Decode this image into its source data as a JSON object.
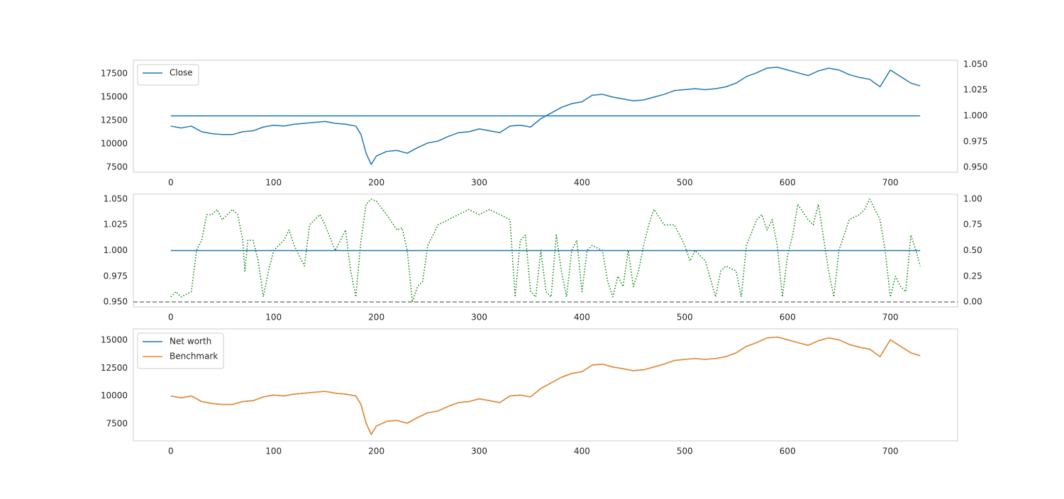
{
  "chart_data": [
    {
      "type": "line",
      "legend": "upper left",
      "grid": false,
      "xlim": [
        -36.45,
        765.45
      ],
      "xticks": [
        0,
        100,
        200,
        300,
        400,
        500,
        600,
        700
      ],
      "ylim": [
        6970,
        18940
      ],
      "yticks": [
        7500,
        10000,
        12500,
        15000,
        17500
      ],
      "y2lim": [
        0.9452,
        1.0541
      ],
      "y2ticks": [
        {
          "value": 0.95,
          "label": "0.950"
        },
        {
          "value": 0.975,
          "label": "0.975"
        },
        {
          "value": 1.0,
          "label": "1.000"
        },
        {
          "value": 1.025,
          "label": "1.025"
        },
        {
          "value": 1.05,
          "label": "1.050"
        }
      ],
      "x": [
        0,
        10,
        20,
        30,
        40,
        50,
        60,
        70,
        80,
        90,
        100,
        110,
        120,
        130,
        140,
        150,
        160,
        170,
        180,
        185,
        190,
        195,
        200,
        210,
        220,
        230,
        240,
        250,
        260,
        270,
        280,
        290,
        300,
        310,
        320,
        330,
        340,
        350,
        360,
        370,
        380,
        390,
        400,
        410,
        420,
        430,
        440,
        450,
        460,
        470,
        480,
        490,
        500,
        510,
        520,
        530,
        540,
        550,
        560,
        570,
        580,
        590,
        600,
        610,
        620,
        630,
        640,
        650,
        660,
        670,
        680,
        690,
        700,
        710,
        720,
        729
      ],
      "series": [
        {
          "name": "Close",
          "color": "#1f77b4",
          "values": [
            11900,
            11700,
            11900,
            11300,
            11100,
            11000,
            11000,
            11300,
            11400,
            11800,
            12000,
            11900,
            12100,
            12200,
            12300,
            12400,
            12200,
            12100,
            11900,
            11000,
            9000,
            7800,
            8700,
            9200,
            9300,
            9000,
            9600,
            10100,
            10300,
            10800,
            11200,
            11300,
            11600,
            11400,
            11200,
            11900,
            12000,
            11800,
            12700,
            13300,
            13900,
            14300,
            14500,
            15200,
            15300,
            15000,
            14800,
            14600,
            14700,
            15000,
            15300,
            15700,
            15800,
            15900,
            15800,
            15900,
            16100,
            16500,
            17200,
            17600,
            18100,
            18200,
            17900,
            17600,
            17300,
            17800,
            18100,
            17900,
            17400,
            17100,
            16900,
            16100,
            17900,
            17200,
            16500,
            16200
          ]
        }
      ],
      "hlines": [
        {
          "y": 1.0,
          "axis": "y2",
          "x": [
            0,
            729
          ],
          "color": "#1f77b4"
        }
      ]
    },
    {
      "type": "line",
      "grid": false,
      "xlim": [
        -36.45,
        765.45
      ],
      "xticks": [
        0,
        100,
        200,
        300,
        400,
        500,
        600,
        700
      ],
      "ylim": [
        0.9452,
        1.0548
      ],
      "yticks": [
        {
          "value": 0.95,
          "label": "0.950"
        },
        {
          "value": 0.975,
          "label": "0.975"
        },
        {
          "value": 1.0,
          "label": "1.000"
        },
        {
          "value": 1.025,
          "label": "1.025"
        },
        {
          "value": 1.05,
          "label": "1.050"
        }
      ],
      "y2lim": [
        -0.048,
        1.048
      ],
      "y2ticks": [
        {
          "value": 0,
          "label": "0.00"
        },
        {
          "value": 0.25,
          "label": "0.25"
        },
        {
          "value": 0.5,
          "label": "0.50"
        },
        {
          "value": 0.75,
          "label": "0.75"
        },
        {
          "value": 1,
          "label": "1.00"
        }
      ],
      "x": [
        0,
        5,
        10,
        20,
        25,
        30,
        35,
        40,
        45,
        50,
        55,
        60,
        65,
        70,
        72,
        75,
        80,
        85,
        90,
        95,
        100,
        110,
        115,
        120,
        130,
        135,
        140,
        145,
        150,
        160,
        170,
        175,
        180,
        185,
        190,
        195,
        200,
        210,
        220,
        225,
        230,
        235,
        240,
        245,
        250,
        260,
        270,
        280,
        290,
        300,
        310,
        320,
        330,
        335,
        340,
        345,
        350,
        355,
        360,
        365,
        370,
        375,
        380,
        385,
        390,
        395,
        400,
        405,
        410,
        420,
        425,
        430,
        435,
        440,
        445,
        450,
        455,
        460,
        465,
        470,
        480,
        490,
        500,
        505,
        510,
        520,
        530,
        535,
        540,
        550,
        555,
        560,
        570,
        575,
        580,
        585,
        590,
        595,
        600,
        605,
        610,
        620,
        625,
        630,
        640,
        645,
        650,
        660,
        670,
        675,
        680,
        690,
        695,
        700,
        705,
        710,
        715,
        720,
        725,
        729
      ],
      "series": [
        {
          "color": "#008000",
          "axis": "y2",
          "style": "dotted",
          "values": [
            0.05,
            0.1,
            0.05,
            0.1,
            0.5,
            0.6,
            0.85,
            0.85,
            0.9,
            0.8,
            0.85,
            0.9,
            0.85,
            0.6,
            0.3,
            0.6,
            0.6,
            0.4,
            0.05,
            0.3,
            0.5,
            0.6,
            0.7,
            0.55,
            0.35,
            0.75,
            0.8,
            0.85,
            0.75,
            0.5,
            0.7,
            0.3,
            0.05,
            0.6,
            0.95,
            1.0,
            0.98,
            0.85,
            0.7,
            0.72,
            0.5,
            0.0,
            0.15,
            0.2,
            0.55,
            0.75,
            0.8,
            0.85,
            0.9,
            0.85,
            0.9,
            0.85,
            0.8,
            0.05,
            0.6,
            0.65,
            0.1,
            0.05,
            0.5,
            0.1,
            0.05,
            0.65,
            0.3,
            0.05,
            0.5,
            0.6,
            0.1,
            0.5,
            0.55,
            0.5,
            0.2,
            0.05,
            0.25,
            0.15,
            0.5,
            0.15,
            0.3,
            0.55,
            0.75,
            0.9,
            0.75,
            0.75,
            0.55,
            0.4,
            0.5,
            0.4,
            0.05,
            0.3,
            0.35,
            0.3,
            0.05,
            0.55,
            0.8,
            0.85,
            0.7,
            0.8,
            0.55,
            0.05,
            0.45,
            0.65,
            0.95,
            0.8,
            0.75,
            0.95,
            0.3,
            0.05,
            0.5,
            0.8,
            0.85,
            0.9,
            1.0,
            0.8,
            0.5,
            0.05,
            0.25,
            0.15,
            0.1,
            0.65,
            0.5,
            0.35
          ]
        }
      ],
      "hlines": [
        {
          "y": 1.0,
          "x": [
            0,
            729
          ],
          "color": "#1f77b4"
        },
        {
          "y": 0,
          "axis": "y2",
          "color": "#808080",
          "style": "dashed"
        }
      ]
    },
    {
      "type": "line",
      "legend": "upper left",
      "grid": false,
      "xlim": [
        -36.45,
        765.45
      ],
      "xticks": [
        0,
        100,
        200,
        300,
        400,
        500,
        600,
        700
      ],
      "ylim": [
        5975,
        16017
      ],
      "yticks": [
        7500,
        10000,
        12500,
        15000
      ],
      "x": [
        0,
        10,
        20,
        30,
        40,
        50,
        60,
        70,
        80,
        90,
        100,
        110,
        120,
        130,
        140,
        150,
        160,
        170,
        180,
        185,
        190,
        195,
        200,
        210,
        220,
        230,
        240,
        250,
        260,
        270,
        280,
        290,
        300,
        310,
        320,
        330,
        340,
        350,
        360,
        370,
        380,
        390,
        400,
        410,
        420,
        430,
        440,
        450,
        460,
        470,
        480,
        490,
        500,
        510,
        520,
        530,
        540,
        550,
        560,
        570,
        580,
        590,
        600,
        610,
        620,
        630,
        640,
        650,
        660,
        670,
        680,
        690,
        700,
        710,
        720,
        729
      ],
      "series": [
        {
          "name": "Net worth",
          "color": "#1f77b4",
          "values": [
            10000,
            9830,
            10000,
            9500,
            9330,
            9240,
            9240,
            9500,
            9580,
            9920,
            10080,
            10000,
            10170,
            10250,
            10340,
            10420,
            10250,
            10170,
            10000,
            9240,
            7560,
            6550,
            7310,
            7730,
            7810,
            7560,
            8070,
            8490,
            8660,
            9080,
            9410,
            9500,
            9750,
            9580,
            9410,
            10000,
            10080,
            9920,
            10670,
            11180,
            11680,
            12020,
            12180,
            12770,
            12860,
            12600,
            12440,
            12270,
            12350,
            12600,
            12860,
            13190,
            13280,
            13360,
            13280,
            13360,
            13530,
            13870,
            14450,
            14790,
            15210,
            15290,
            15040,
            14790,
            14540,
            14960,
            15210,
            15040,
            14620,
            14370,
            14200,
            13530,
            15040,
            14450,
            13870,
            13610
          ]
        },
        {
          "name": "Benchmark",
          "color": "#f08a24",
          "values": [
            10000,
            9830,
            10000,
            9500,
            9330,
            9240,
            9240,
            9500,
            9580,
            9920,
            10080,
            10000,
            10170,
            10250,
            10340,
            10420,
            10250,
            10170,
            10000,
            9240,
            7560,
            6550,
            7310,
            7730,
            7810,
            7560,
            8070,
            8490,
            8660,
            9080,
            9410,
            9500,
            9750,
            9580,
            9410,
            10000,
            10080,
            9920,
            10670,
            11180,
            11680,
            12020,
            12180,
            12770,
            12860,
            12600,
            12440,
            12270,
            12350,
            12600,
            12860,
            13190,
            13280,
            13360,
            13280,
            13360,
            13530,
            13870,
            14450,
            14790,
            15210,
            15290,
            15040,
            14790,
            14540,
            14960,
            15210,
            15040,
            14620,
            14370,
            14200,
            13530,
            15040,
            14450,
            13870,
            13610
          ]
        }
      ]
    }
  ]
}
